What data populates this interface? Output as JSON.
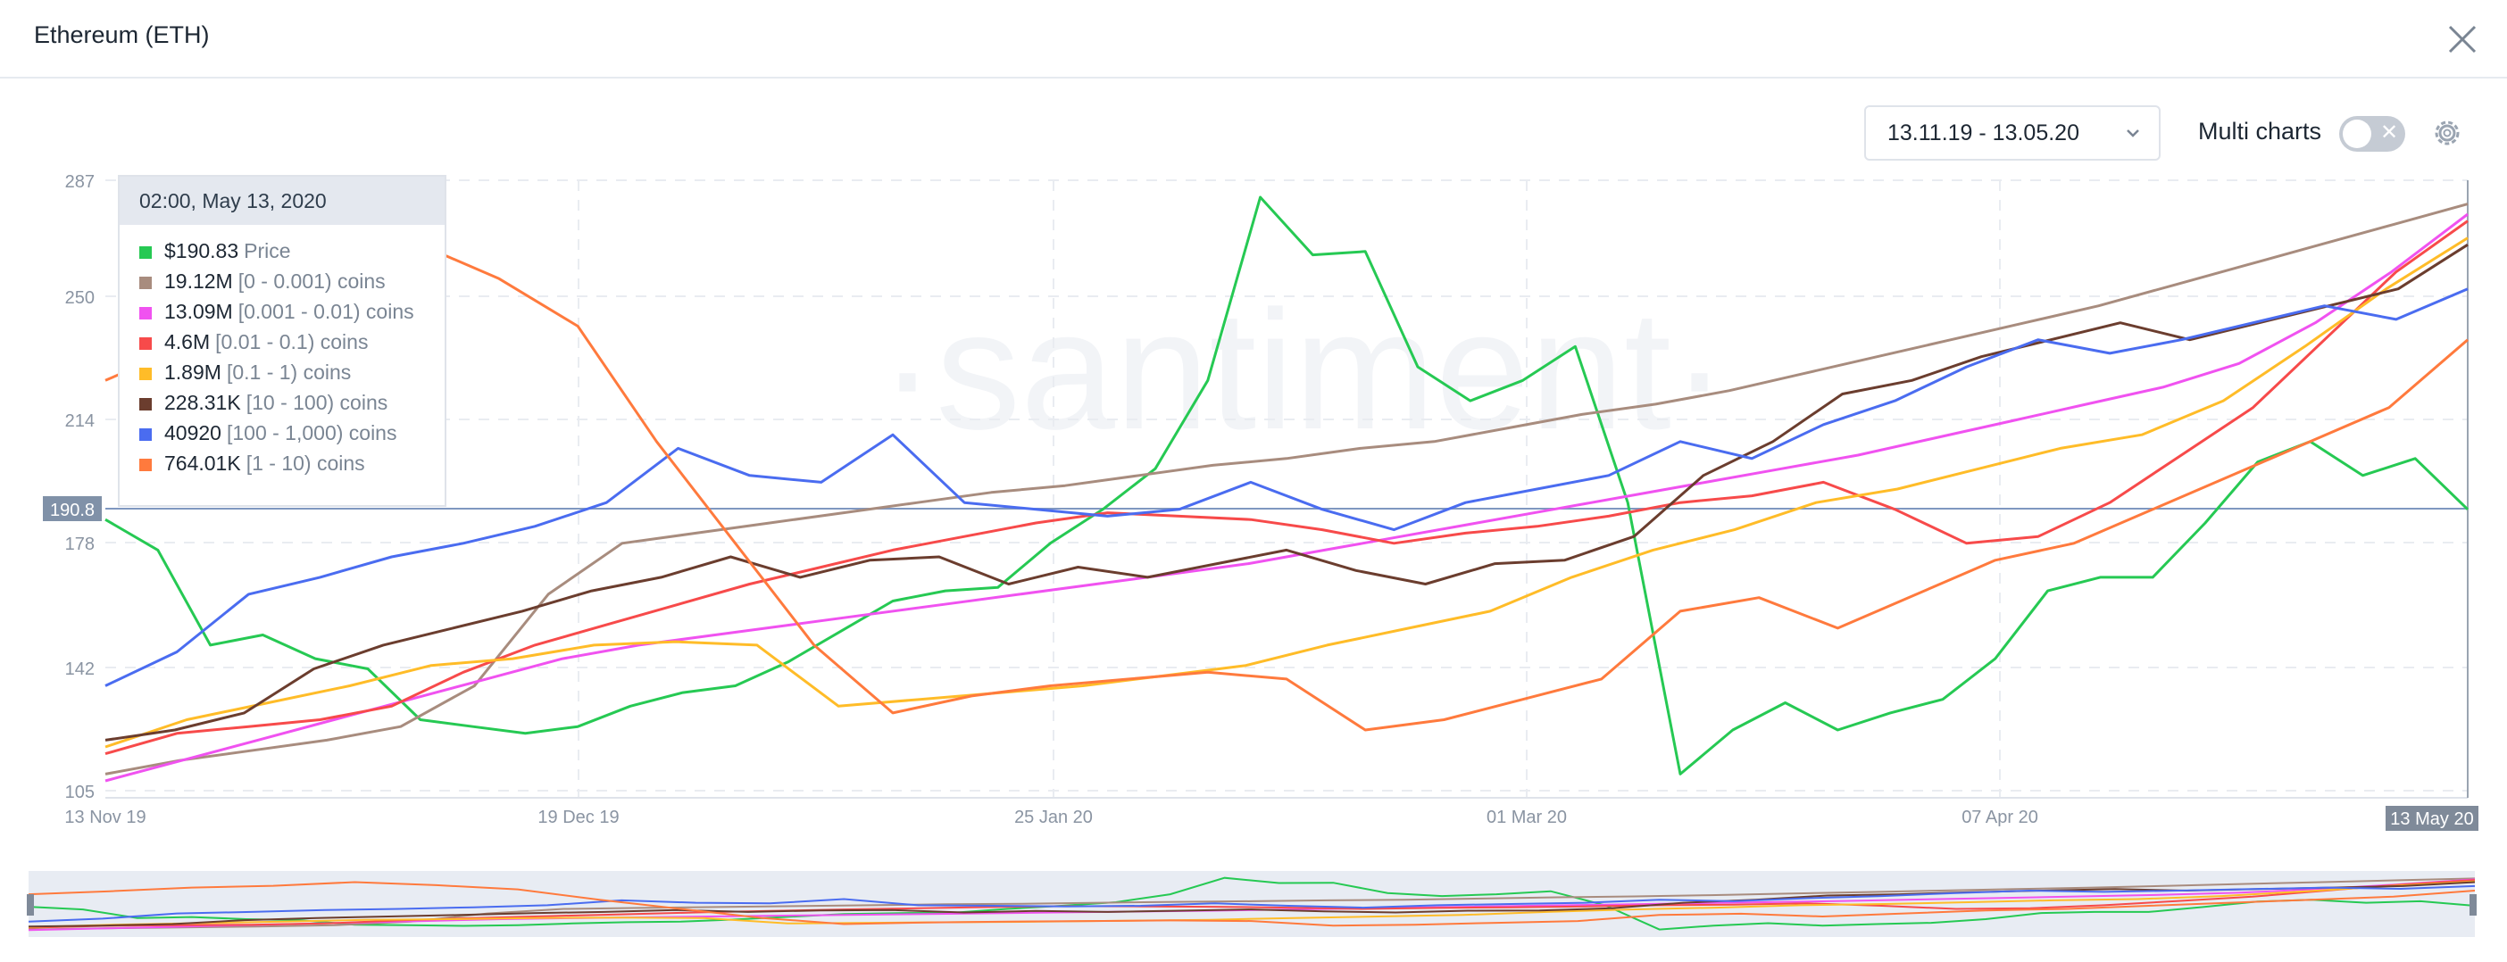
{
  "header": {
    "title": "Ethereum (ETH)"
  },
  "controls": {
    "date_range": "13.11.19 - 13.05.20",
    "multi_charts_label": "Multi charts",
    "multi_charts_enabled": false
  },
  "tooltip": {
    "timestamp": "02:00, May 13, 2020",
    "rows": [
      {
        "value": "$190.83",
        "label": "Price",
        "color": "#26c953"
      },
      {
        "value": "19.12M",
        "label": "[0 - 0.001) coins",
        "color": "#a88c7e"
      },
      {
        "value": "13.09M",
        "label": "[0.001 - 0.01) coins",
        "color": "#f052f0"
      },
      {
        "value": "4.6M",
        "label": "[0.01 - 0.1) coins",
        "color": "#f74a4a"
      },
      {
        "value": "1.89M",
        "label": "[0.1 - 1) coins",
        "color": "#ffbc28"
      },
      {
        "value": "228.31K",
        "label": "[10 - 100) coins",
        "color": "#6b3d2e"
      },
      {
        "value": "40920",
        "label": "[100 - 1,000) coins",
        "color": "#4a6cf0"
      },
      {
        "value": "764.01K",
        "label": "[1 - 10) coins",
        "color": "#ff7a3d"
      }
    ]
  },
  "watermark": "·santiment·",
  "chart_data": {
    "type": "line",
    "x_labels": [
      "13 Nov 19",
      "19 Dec 19",
      "25 Jan 20",
      "01 Mar 20",
      "07 Apr 20"
    ],
    "x_highlight_label": "13 May 20",
    "y_ticks": [
      287,
      250,
      214,
      178,
      142,
      105
    ],
    "y_highlight": "190.8",
    "ylim": [
      105,
      287
    ],
    "ylabel": "",
    "series": [
      {
        "name": "Price",
        "color": "#26c953",
        "values": [
          187,
          178,
          150,
          153,
          146,
          143,
          128,
          126,
          124,
          126,
          132,
          136,
          138,
          145,
          154,
          163,
          166,
          167,
          180,
          190,
          202,
          228,
          282,
          265,
          266,
          232,
          222,
          228,
          238,
          192,
          112,
          125,
          133,
          125,
          130,
          134,
          146,
          166,
          170,
          170,
          186,
          204,
          210,
          200,
          205,
          190
        ]
      },
      {
        "name": "[0 - 0.001) coins",
        "color": "#a88c7e",
        "values": [
          112,
          116,
          119,
          122,
          126,
          138,
          165,
          180,
          183,
          186,
          189,
          192,
          195,
          197,
          200,
          203,
          205,
          208,
          210,
          214,
          218,
          221,
          225,
          230,
          235,
          240,
          245,
          250,
          256,
          262,
          268,
          274,
          280
        ]
      },
      {
        "name": "[0.001 - 0.01) coins",
        "color": "#f052f0",
        "values": [
          110,
          116,
          122,
          128,
          134,
          140,
          146,
          150,
          153,
          156,
          159,
          162,
          165,
          168,
          171,
          174,
          178,
          182,
          186,
          190,
          194,
          198,
          202,
          206,
          211,
          216,
          221,
          226,
          233,
          245,
          260,
          277
        ]
      },
      {
        "name": "[0.01 - 0.1) coins",
        "color": "#f74a4a",
        "values": [
          118,
          124,
          126,
          128,
          132,
          142,
          150,
          156,
          162,
          168,
          173,
          178,
          182,
          186,
          189,
          188,
          187,
          184,
          180,
          183,
          185,
          188,
          192,
          194,
          198,
          190,
          180,
          182,
          192,
          206,
          220,
          240,
          260,
          275
        ]
      },
      {
        "name": "[0.1 - 1) coins",
        "color": "#ffbc28",
        "values": [
          120,
          128,
          133,
          138,
          144,
          146,
          150,
          151,
          150,
          132,
          134,
          136,
          138,
          141,
          144,
          150,
          155,
          160,
          170,
          178,
          184,
          192,
          196,
          202,
          208,
          212,
          222,
          238,
          255,
          270
        ]
      },
      {
        "name": "[10 - 100) coins",
        "color": "#6b3d2e",
        "values": [
          122,
          125,
          130,
          143,
          150,
          155,
          160,
          166,
          170,
          176,
          170,
          175,
          176,
          168,
          173,
          170,
          174,
          178,
          172,
          168,
          174,
          175,
          182,
          200,
          210,
          224,
          228,
          235,
          240,
          245,
          240,
          245,
          250,
          255,
          268
        ]
      },
      {
        "name": "[100 - 1,000) coins",
        "color": "#4a6cf0",
        "values": [
          138,
          148,
          165,
          170,
          176,
          180,
          185,
          192,
          208,
          200,
          198,
          212,
          192,
          190,
          188,
          190,
          198,
          190,
          184,
          192,
          196,
          200,
          210,
          205,
          215,
          222,
          232,
          240,
          236,
          240,
          245,
          250,
          246,
          255
        ]
      },
      {
        "name": "[1 - 10) coins",
        "color": "#ff7a3d",
        "values": [
          228,
          238,
          250,
          256,
          268,
          258,
          244,
          210,
          180,
          150,
          130,
          135,
          138,
          140,
          142,
          140,
          125,
          128,
          134,
          140,
          160,
          164,
          155,
          165,
          175,
          180,
          190,
          200,
          210,
          220,
          240
        ]
      }
    ]
  }
}
